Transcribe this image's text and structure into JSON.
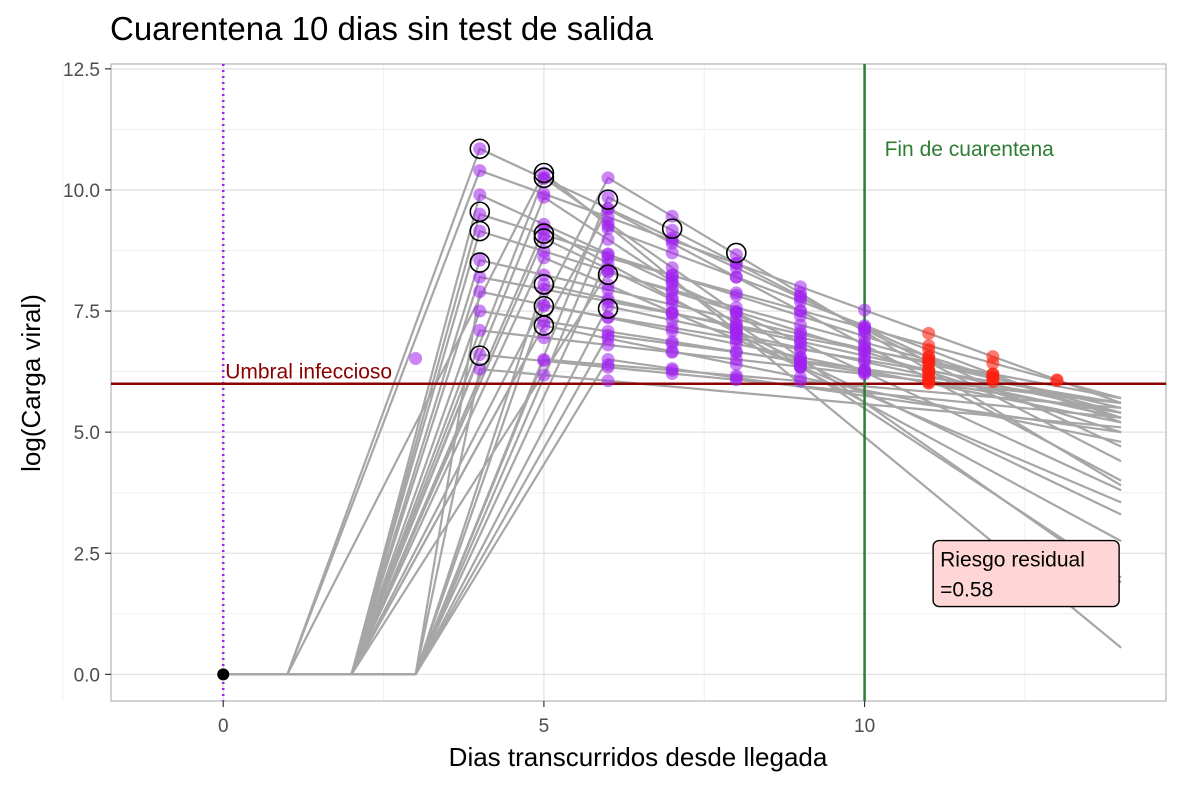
{
  "chart_data": {
    "type": "line",
    "title": "Cuarentena 10 dias sin test de salida",
    "xlabel": "Dias transcurridos desde llegada",
    "ylabel": "log(Carga viral)",
    "xlim": [
      -1.75,
      14.7
    ],
    "ylim": [
      -0.55,
      12.6
    ],
    "x_ticks": [
      0,
      5,
      10
    ],
    "x_tick_labels": [
      "0",
      "5",
      "10"
    ],
    "y_ticks": [
      0,
      2.5,
      5,
      7.5,
      10,
      12.5
    ],
    "y_tick_labels": [
      "0.0",
      "2.5",
      "5.0",
      "7.5",
      "10.0",
      "12.5"
    ],
    "grid": true,
    "legend": "none",
    "colors": {
      "trajectory": "#a6a6a6",
      "quarantine_point": "#a020f0",
      "released_infectious_point": "#ff2010",
      "threshold": "#8b0000",
      "quarantine_end": "#2e7d32",
      "arrival": "#a020f0",
      "origin": "#000000",
      "risk_box_fill": "#ffd6d6"
    },
    "threshold": {
      "y": 6,
      "label": "Umbral infeccioso"
    },
    "quarantine_end": {
      "x": 10,
      "label": "Fin de cuarentena"
    },
    "arrival_line": {
      "x": 0
    },
    "risk_box": {
      "line1": "Riesgo residual",
      "line2": "=0.58",
      "x": 11.1,
      "y": 1.4
    },
    "trajectories": [
      {
        "onset": 1,
        "peak_day": 4,
        "peak": 10.85,
        "end": 4.7
      },
      {
        "onset": 1,
        "peak_day": 4,
        "peak": 10.4,
        "end": 5.6
      },
      {
        "onset": 2,
        "peak_day": 4,
        "peak": 9.9,
        "end": 3.8
      },
      {
        "onset": 2,
        "peak_day": 4,
        "peak": 9.5,
        "end": 5.3
      },
      {
        "onset": 2,
        "peak_day": 4,
        "peak": 9.15,
        "end": 5.0
      },
      {
        "onset": 2,
        "peak_day": 4,
        "peak": 8.55,
        "end": 5.5
      },
      {
        "onset": 2,
        "peak_day": 4,
        "peak": 8.2,
        "end": 5.7
      },
      {
        "onset": 3,
        "peak_day": 4,
        "peak": 7.9,
        "end": 5.2
      },
      {
        "onset": 2,
        "peak_day": 4,
        "peak": 7.5,
        "end": 5.4
      },
      {
        "onset": 2,
        "peak_day": 4,
        "peak": 7.1,
        "end": 5.6
      },
      {
        "onset": 2,
        "peak_day": 4,
        "peak": 6.6,
        "end": 5.3
      },
      {
        "onset": 3,
        "peak_day": 4,
        "peak": 6.3,
        "end": 5.1
      },
      {
        "onset": 1,
        "peak_day": 5,
        "peak": 10.35,
        "end": 0.55
      },
      {
        "onset": 2,
        "peak_day": 5,
        "peak": 10.25,
        "end": 1.9
      },
      {
        "onset": 2,
        "peak_day": 5,
        "peak": 9.85,
        "end": 2.0
      },
      {
        "onset": 2,
        "peak_day": 5,
        "peak": 9.2,
        "end": 2.75
      },
      {
        "onset": 2,
        "peak_day": 5,
        "peak": 9.0,
        "end": 3.3
      },
      {
        "onset": 2,
        "peak_day": 5,
        "peak": 8.6,
        "end": 3.55
      },
      {
        "onset": 3,
        "peak_day": 5,
        "peak": 8.05,
        "end": 5.4
      },
      {
        "onset": 3,
        "peak_day": 5,
        "peak": 7.6,
        "end": 5.6
      },
      {
        "onset": 2,
        "peak_day": 5,
        "peak": 7.2,
        "end": 4.8
      },
      {
        "onset": 3,
        "peak_day": 5,
        "peak": 6.5,
        "end": 5.5
      },
      {
        "onset": 2,
        "peak_day": 6,
        "peak": 10.25,
        "end": 3.9
      },
      {
        "onset": 3,
        "peak_day": 6,
        "peak": 9.85,
        "end": 4.4
      },
      {
        "onset": 2,
        "peak_day": 6,
        "peak": 9.6,
        "end": 4.0
      },
      {
        "onset": 3,
        "peak_day": 6,
        "peak": 9.2,
        "end": 5.2
      },
      {
        "onset": 3,
        "peak_day": 6,
        "peak": 8.6,
        "end": 5.7
      },
      {
        "onset": 2,
        "peak_day": 6,
        "peak": 8.3,
        "end": 5.4
      },
      {
        "onset": 3,
        "peak_day": 6,
        "peak": 7.6,
        "end": 5.3
      },
      {
        "onset": 3,
        "peak_day": 6,
        "peak": 7.0,
        "end": 5.6
      },
      {
        "onset": 3,
        "peak_day": 6,
        "peak": 6.5,
        "end": 5.0
      }
    ],
    "early_point": {
      "x": 3,
      "y": 6.52
    },
    "circled_points": [
      {
        "x": 4,
        "y": 10.85
      },
      {
        "x": 4,
        "y": 9.55
      },
      {
        "x": 4,
        "y": 9.15
      },
      {
        "x": 4,
        "y": 8.5
      },
      {
        "x": 4,
        "y": 6.58
      },
      {
        "x": 5,
        "y": 10.35
      },
      {
        "x": 5,
        "y": 10.25
      },
      {
        "x": 5,
        "y": 9.1
      },
      {
        "x": 5,
        "y": 9.0
      },
      {
        "x": 5,
        "y": 8.05
      },
      {
        "x": 5,
        "y": 7.6
      },
      {
        "x": 5,
        "y": 7.2
      },
      {
        "x": 6,
        "y": 9.8
      },
      {
        "x": 6,
        "y": 8.25
      },
      {
        "x": 6,
        "y": 7.55
      },
      {
        "x": 7,
        "y": 9.2
      },
      {
        "x": 8,
        "y": 8.7
      }
    ]
  }
}
